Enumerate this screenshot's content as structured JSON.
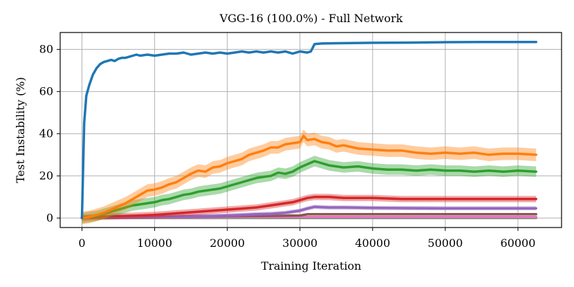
{
  "chart_data": {
    "type": "line",
    "title": "VGG-16 (100.0%)  - Full Network",
    "xlabel": "Training Iteration",
    "ylabel": "Test Instability (%)",
    "xlim": [
      -3000,
      66000
    ],
    "ylim": [
      -4.5,
      88
    ],
    "xticks": [
      0,
      10000,
      20000,
      30000,
      40000,
      50000,
      60000
    ],
    "xtick_labels": [
      "0",
      "10000",
      "20000",
      "30000",
      "40000",
      "50000",
      "60000"
    ],
    "yticks": [
      0,
      20,
      40,
      60,
      80
    ],
    "ytick_labels": [
      "0",
      "20",
      "40",
      "60",
      "80"
    ],
    "grid": true,
    "legend": "none",
    "series": [
      {
        "color": "#1f77b4",
        "band": 0.5,
        "x": [
          0,
          300,
          600,
          1000,
          1500,
          2000,
          2500,
          3000,
          3500,
          4000,
          4500,
          5000,
          5500,
          6000,
          6500,
          7000,
          7500,
          8000,
          9000,
          10000,
          11000,
          12000,
          13000,
          14000,
          15000,
          16000,
          17000,
          18000,
          19000,
          20000,
          21000,
          22000,
          23000,
          24000,
          25000,
          26000,
          27000,
          28000,
          29000,
          30000,
          31000,
          31500,
          32000,
          33000,
          35000,
          40000,
          45000,
          50000,
          55000,
          60000,
          62500
        ],
        "y": [
          0,
          45,
          58,
          63,
          68,
          71,
          73,
          74,
          74.5,
          75,
          74.5,
          75.5,
          76,
          76,
          76.5,
          77,
          77.5,
          77,
          77.5,
          77,
          77.5,
          78,
          78,
          78.5,
          77.5,
          78,
          78.5,
          78,
          78.5,
          78,
          78.5,
          79,
          78.5,
          79,
          78.5,
          79,
          78.5,
          79,
          78,
          79,
          78.5,
          79,
          82.5,
          82.8,
          82.9,
          83.1,
          83.2,
          83.4,
          83.5,
          83.5,
          83.5
        ]
      },
      {
        "color": "#ff7f0e",
        "band": 3,
        "x": [
          0,
          1000,
          2000,
          3000,
          4000,
          5000,
          6000,
          7000,
          8000,
          9000,
          10000,
          11000,
          12000,
          13000,
          14000,
          15000,
          16000,
          17000,
          18000,
          19000,
          20000,
          21000,
          22000,
          23000,
          24000,
          25000,
          26000,
          27000,
          28000,
          29000,
          30000,
          30500,
          31000,
          32000,
          33000,
          34000,
          35000,
          36000,
          38000,
          40000,
          42000,
          44000,
          46000,
          48000,
          50000,
          52000,
          54000,
          56000,
          58000,
          60000,
          62500
        ],
        "y": [
          0,
          0.5,
          1.5,
          2.5,
          4,
          5.5,
          7,
          9,
          11,
          13,
          13.5,
          14.5,
          16,
          17,
          19,
          21,
          22.5,
          22,
          24,
          24.5,
          26,
          27,
          28,
          30,
          31,
          32,
          33.5,
          33.5,
          35,
          35.5,
          36,
          39,
          37,
          37.5,
          36,
          35.5,
          34,
          34.5,
          33,
          32.5,
          32,
          32,
          31,
          30.5,
          31,
          30.5,
          31,
          30,
          30.5,
          30.5,
          30
        ]
      },
      {
        "color": "#2ca02c",
        "band": 2.5,
        "x": [
          0,
          1000,
          2000,
          3000,
          4000,
          5000,
          6000,
          7000,
          8000,
          9000,
          10000,
          11000,
          12000,
          13000,
          14000,
          15000,
          16000,
          17000,
          18000,
          19000,
          20000,
          21000,
          22000,
          23000,
          24000,
          25000,
          26000,
          27000,
          28000,
          29000,
          30000,
          31000,
          32000,
          33000,
          34000,
          35000,
          36000,
          38000,
          40000,
          42000,
          44000,
          46000,
          48000,
          50000,
          52000,
          54000,
          56000,
          58000,
          60000,
          62500
        ],
        "y": [
          0,
          0.5,
          1,
          2,
          3,
          4,
          5,
          6,
          6.5,
          7,
          7.5,
          8.5,
          9,
          10,
          11,
          11.5,
          12.5,
          13,
          13.5,
          14,
          15,
          16,
          17,
          18,
          19,
          19.5,
          20,
          21.5,
          21,
          22,
          24,
          25.5,
          27,
          26,
          25,
          24.5,
          24,
          24.5,
          23.5,
          23,
          23,
          22.5,
          23,
          22.5,
          22.5,
          22,
          22.5,
          22,
          22.5,
          22
        ]
      },
      {
        "color": "#d62728",
        "band": 1.5,
        "x": [
          0,
          2000,
          4000,
          6000,
          8000,
          10000,
          12000,
          14000,
          16000,
          18000,
          20000,
          22000,
          24000,
          26000,
          28000,
          29000,
          30000,
          31000,
          32000,
          34000,
          36000,
          38000,
          40000,
          44000,
          48000,
          52000,
          56000,
          60000,
          62500
        ],
        "y": [
          0,
          0.5,
          0.8,
          1,
          1.2,
          1.5,
          2,
          2.5,
          3,
          3.5,
          4,
          4.5,
          5,
          6,
          7,
          7.5,
          8.5,
          9.5,
          10,
          10,
          9.5,
          9.5,
          9.5,
          9,
          9,
          9,
          9,
          9,
          9
        ]
      },
      {
        "color": "#9467bd",
        "band": 1,
        "x": [
          0,
          1000,
          2000,
          4000,
          6000,
          8000,
          10000,
          12000,
          14000,
          16000,
          18000,
          20000,
          22000,
          24000,
          26000,
          28000,
          29000,
          30000,
          31000,
          32000,
          34000,
          36000,
          40000,
          45000,
          50000,
          55000,
          60000,
          62500
        ],
        "y": [
          0,
          0.5,
          0.5,
          0.3,
          0.4,
          0.5,
          0.6,
          0.7,
          0.8,
          0.9,
          1,
          1.2,
          1.5,
          1.8,
          2,
          2.5,
          3,
          3.5,
          4.5,
          5.3,
          5,
          5,
          4.8,
          4.7,
          4.6,
          4.6,
          4.6,
          4.6
        ]
      },
      {
        "color": "#8c564b",
        "band": 0.5,
        "x": [
          0,
          5000,
          10000,
          20000,
          30000,
          31000,
          40000,
          50000,
          62500
        ],
        "y": [
          0.5,
          0.5,
          0.6,
          0.8,
          1.2,
          1.8,
          1.8,
          1.8,
          1.8
        ]
      },
      {
        "color": "#e377c2",
        "band": 0.5,
        "x": [
          1000,
          1500,
          2000,
          3000,
          5000,
          10000,
          20000,
          30000,
          40000,
          50000,
          62500
        ],
        "y": [
          0,
          1,
          0.5,
          0.4,
          0.3,
          0.3,
          0.4,
          0.5,
          0.5,
          0.5,
          0.5
        ]
      },
      {
        "color": "#7f7f7f",
        "band": 0.3,
        "x": [
          0,
          10000,
          20000,
          30000,
          40000,
          50000,
          62500
        ],
        "y": [
          0.1,
          0.1,
          0.15,
          0.2,
          0.2,
          0.2,
          0.2
        ]
      },
      {
        "color": "#bcbd22",
        "band": 0.2,
        "x": [
          0,
          10000,
          20000,
          30000,
          40000,
          50000,
          62500
        ],
        "y": [
          0,
          0.05,
          0.08,
          0.1,
          0.1,
          0.1,
          0.1
        ]
      },
      {
        "color": "#17becf",
        "band": 0.2,
        "x": [
          0,
          20000,
          40000,
          62500
        ],
        "y": [
          0,
          0.05,
          0.05,
          0.05
        ]
      }
    ]
  }
}
